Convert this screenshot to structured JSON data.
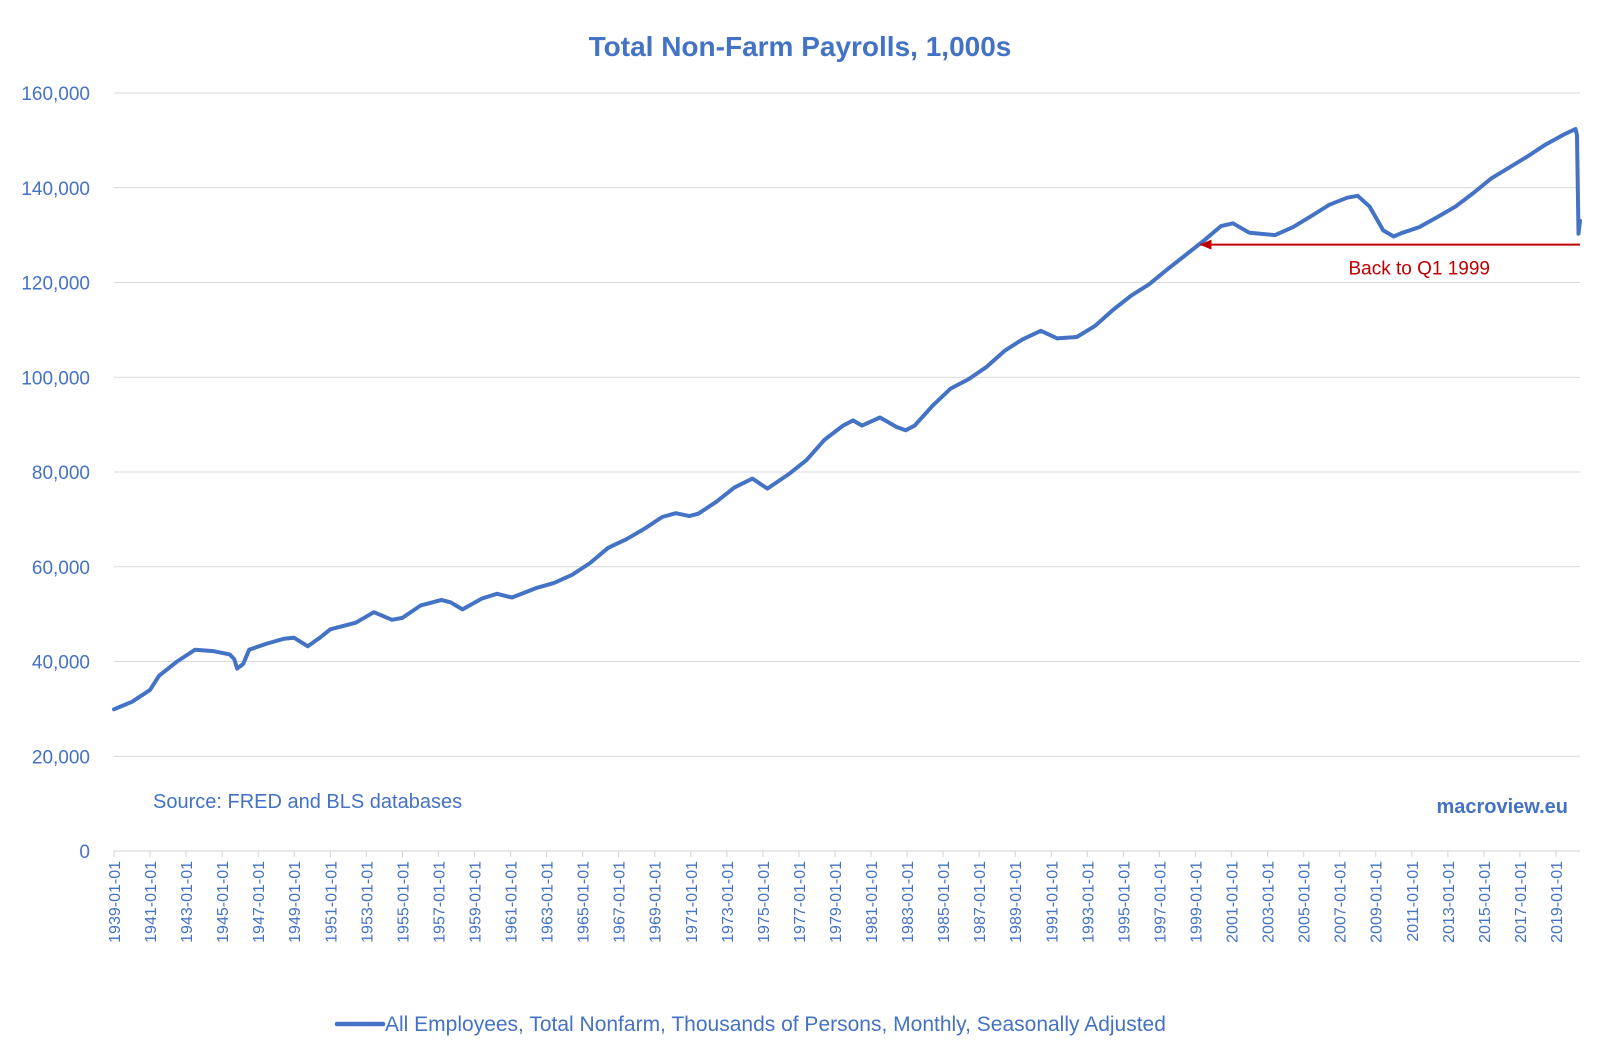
{
  "colors": {
    "series": "#4472C4",
    "text": "#4472C4",
    "annotation": "#C00000",
    "grid": "#D9D9D9",
    "background": "#FFFFFF"
  },
  "chart_data": {
    "type": "line",
    "title": "Total Non-Farm Payrolls, 1,000s",
    "xlabel": "",
    "ylabel": "",
    "ylim": [
      0,
      160000
    ],
    "yticks": [
      0,
      20000,
      40000,
      60000,
      80000,
      100000,
      120000,
      140000,
      160000
    ],
    "ytick_labels": [
      "0",
      "20,000",
      "40,000",
      "60,000",
      "80,000",
      "100,000",
      "120,000",
      "140,000",
      "160,000"
    ],
    "xlim": [
      "1939-01-01",
      "2020-05-01"
    ],
    "xtick_labels": [
      "1939-01-01",
      "1941-01-01",
      "1943-01-01",
      "1945-01-01",
      "1947-01-01",
      "1949-01-01",
      "1951-01-01",
      "1953-01-01",
      "1955-01-01",
      "1957-01-01",
      "1959-01-01",
      "1961-01-01",
      "1963-01-01",
      "1965-01-01",
      "1967-01-01",
      "1969-01-01",
      "1971-01-01",
      "1973-01-01",
      "1975-01-01",
      "1977-01-01",
      "1979-01-01",
      "1981-01-01",
      "1983-01-01",
      "1985-01-01",
      "1987-01-01",
      "1989-01-01",
      "1991-01-01",
      "1993-01-01",
      "1995-01-01",
      "1997-01-01",
      "1999-01-01",
      "2001-01-01",
      "2003-01-01",
      "2005-01-01",
      "2007-01-01",
      "2009-01-01",
      "2011-01-01",
      "2013-01-01",
      "2015-01-01",
      "2017-01-01",
      "2019-01-01"
    ],
    "grid": true,
    "legend_position": "bottom",
    "series": [
      {
        "name": "All Employees, Total Nonfarm, Thousands of Persons, Monthly, Seasonally Adjusted",
        "points": [
          [
            "1939-01-01",
            29900
          ],
          [
            "1940-01-01",
            31500
          ],
          [
            "1941-01-01",
            34000
          ],
          [
            "1941-07-01",
            37000
          ],
          [
            "1942-07-01",
            40000
          ],
          [
            "1943-07-01",
            42500
          ],
          [
            "1944-07-01",
            42200
          ],
          [
            "1945-06-01",
            41500
          ],
          [
            "1945-09-01",
            40500
          ],
          [
            "1945-11-01",
            38500
          ],
          [
            "1946-03-01",
            39500
          ],
          [
            "1946-07-01",
            42500
          ],
          [
            "1947-06-01",
            43700
          ],
          [
            "1948-06-01",
            44800
          ],
          [
            "1949-01-01",
            45000
          ],
          [
            "1949-10-01",
            43200
          ],
          [
            "1950-06-01",
            45000
          ],
          [
            "1951-01-01",
            46800
          ],
          [
            "1952-06-01",
            48200
          ],
          [
            "1953-06-01",
            50400
          ],
          [
            "1954-06-01",
            48800
          ],
          [
            "1955-01-01",
            49200
          ],
          [
            "1956-01-01",
            51800
          ],
          [
            "1957-03-01",
            53000
          ],
          [
            "1957-09-01",
            52500
          ],
          [
            "1958-05-01",
            51000
          ],
          [
            "1959-06-01",
            53300
          ],
          [
            "1960-04-01",
            54300
          ],
          [
            "1961-02-01",
            53500
          ],
          [
            "1962-06-01",
            55500
          ],
          [
            "1963-06-01",
            56600
          ],
          [
            "1964-06-01",
            58300
          ],
          [
            "1965-06-01",
            60800
          ],
          [
            "1966-06-01",
            64000
          ],
          [
            "1967-06-01",
            65800
          ],
          [
            "1968-06-01",
            68000
          ],
          [
            "1969-06-01",
            70500
          ],
          [
            "1970-03-01",
            71300
          ],
          [
            "1970-12-01",
            70700
          ],
          [
            "1971-06-01",
            71200
          ],
          [
            "1972-06-01",
            73700
          ],
          [
            "1973-06-01",
            76700
          ],
          [
            "1974-06-01",
            78600
          ],
          [
            "1975-04-01",
            76500
          ],
          [
            "1976-06-01",
            79500
          ],
          [
            "1977-06-01",
            82500
          ],
          [
            "1978-06-01",
            86800
          ],
          [
            "1979-06-01",
            89700
          ],
          [
            "1980-01-01",
            90900
          ],
          [
            "1980-07-01",
            89800
          ],
          [
            "1981-07-01",
            91500
          ],
          [
            "1982-06-01",
            89500
          ],
          [
            "1982-12-01",
            88800
          ],
          [
            "1983-06-01",
            89800
          ],
          [
            "1984-06-01",
            94000
          ],
          [
            "1985-06-01",
            97600
          ],
          [
            "1986-06-01",
            99600
          ],
          [
            "1987-06-01",
            102200
          ],
          [
            "1988-06-01",
            105600
          ],
          [
            "1989-06-01",
            108000
          ],
          [
            "1990-06-01",
            109800
          ],
          [
            "1991-05-01",
            108200
          ],
          [
            "1992-06-01",
            108500
          ],
          [
            "1993-06-01",
            110800
          ],
          [
            "1994-06-01",
            114200
          ],
          [
            "1995-06-01",
            117200
          ],
          [
            "1996-06-01",
            119600
          ],
          [
            "1997-06-01",
            122700
          ],
          [
            "1998-06-01",
            125700
          ],
          [
            "1999-06-01",
            128700
          ],
          [
            "2000-06-01",
            131900
          ],
          [
            "2001-02-01",
            132500
          ],
          [
            "2002-01-01",
            130500
          ],
          [
            "2003-06-01",
            130000
          ],
          [
            "2004-06-01",
            131700
          ],
          [
            "2005-06-01",
            134000
          ],
          [
            "2006-06-01",
            136400
          ],
          [
            "2007-06-01",
            137900
          ],
          [
            "2008-01-01",
            138300
          ],
          [
            "2008-09-01",
            136000
          ],
          [
            "2009-06-01",
            131000
          ],
          [
            "2010-01-01",
            129700
          ],
          [
            "2010-06-01",
            130400
          ],
          [
            "2011-06-01",
            131700
          ],
          [
            "2012-06-01",
            133800
          ],
          [
            "2013-06-01",
            136000
          ],
          [
            "2014-06-01",
            138900
          ],
          [
            "2015-06-01",
            142000
          ],
          [
            "2016-06-01",
            144300
          ],
          [
            "2017-06-01",
            146600
          ],
          [
            "2018-06-01",
            149100
          ],
          [
            "2019-06-01",
            151200
          ],
          [
            "2020-02-01",
            152400
          ],
          [
            "2020-03-01",
            151100
          ],
          [
            "2020-04-01",
            130300
          ],
          [
            "2020-05-01",
            133000
          ]
        ]
      }
    ],
    "annotations": [
      {
        "text": "Back to Q1 1999",
        "type": "arrow",
        "from_date": "2020-05-01",
        "to_date": "1999-03-01",
        "y": 128000
      },
      {
        "text": "Source: FRED and BLS databases",
        "type": "note"
      },
      {
        "text": "macroview.eu",
        "type": "brand"
      }
    ]
  }
}
